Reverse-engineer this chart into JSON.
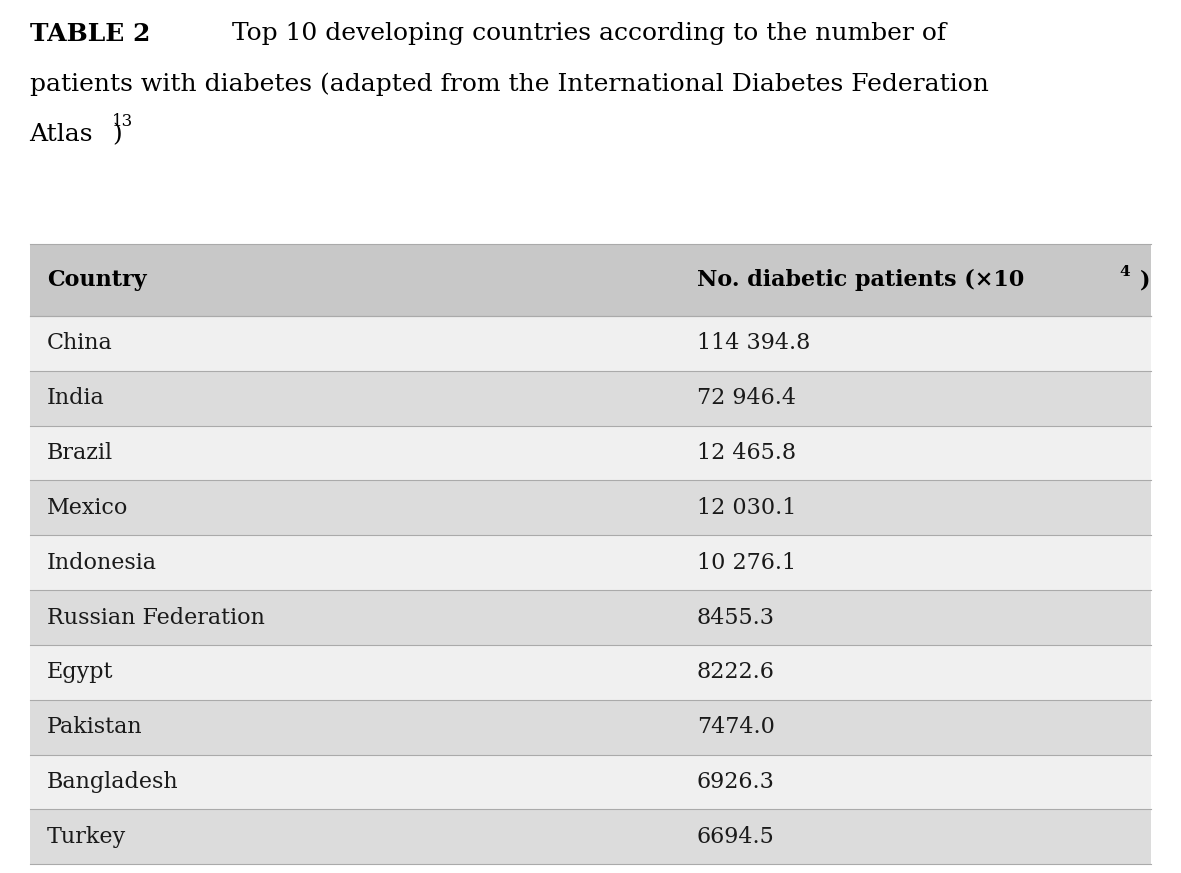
{
  "title_bold": "TABLE 2",
  "title_line1_rest": "Top 10 developing countries according to the number of",
  "title_line2": "patients with diabetes (adapted from the International Diabetes Federation",
  "title_line3_main": "Atlas",
  "title_superscript": "13",
  "col1_header": "Country",
  "col2_header_main": "No. diabetic patients (×10",
  "col2_header_sup": "4",
  "col2_header_end": ")",
  "countries": [
    "China",
    "India",
    "Brazil",
    "Mexico",
    "Indonesia",
    "Russian Federation",
    "Egypt",
    "Pakistan",
    "Bangladesh",
    "Turkey"
  ],
  "values": [
    "114 394.8",
    "72 946.4",
    "12 465.8",
    "12 030.1",
    "10 276.1",
    "8455.3",
    "8222.6",
    "7474.0",
    "6926.3",
    "6694.5"
  ],
  "header_bg": "#c8c8c8",
  "row_bg_odd": "#dcdcdc",
  "row_bg_even": "#f0f0f0",
  "text_color": "#1a1a1a",
  "header_text_color": "#000000",
  "title_color": "#000000",
  "bg_color": "#ffffff",
  "font_size_title": 18,
  "font_size_header": 16,
  "font_size_data": 16
}
